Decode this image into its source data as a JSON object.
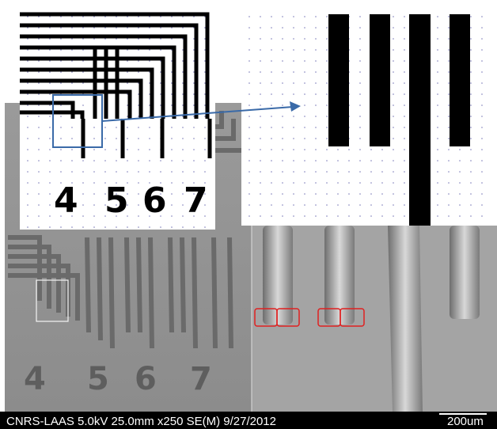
{
  "info_bar": {
    "text": "CNRS-LAAS 5.0kV 25.0mm x250 SE(M) 9/27/2012",
    "scale": "200um"
  },
  "pattern_labels": [
    "4",
    "5",
    "6",
    "7"
  ]
}
